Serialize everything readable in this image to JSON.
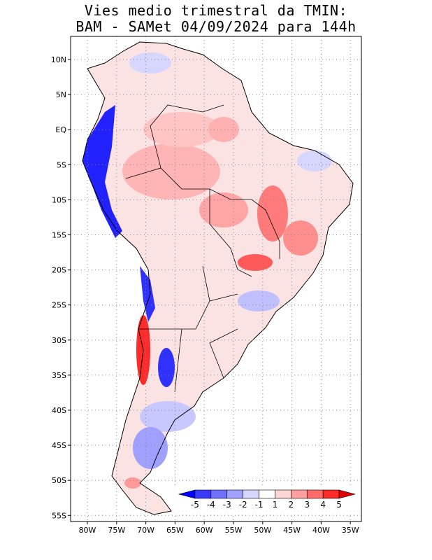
{
  "title_line1": "Vies medio trimestral da TMIN:",
  "title_line2": "BAM - SAMet 04/09/2024  para 144h",
  "lat_labels": [
    "10N",
    "5N",
    "EQ",
    "5S",
    "10S",
    "15S",
    "20S",
    "25S",
    "30S",
    "35S",
    "40S",
    "45S",
    "50S",
    "55S"
  ],
  "lon_labels": [
    "80W",
    "75W",
    "70W",
    "65W",
    "60W",
    "55W",
    "50W",
    "45W",
    "40W",
    "35W"
  ],
  "colorbar": {
    "levels": [
      "-5",
      "-4",
      "-3",
      "-2",
      "-1",
      "1",
      "2",
      "3",
      "4",
      "5"
    ],
    "colors": [
      "#0000ff",
      "#3a3aff",
      "#7070ff",
      "#a0a0ff",
      "#d6d6ff",
      "#ffffff",
      "#ffd6d6",
      "#ffa0a0",
      "#ff6a6a",
      "#ff2a2a",
      "#e00000"
    ]
  },
  "grid": "dotted"
}
